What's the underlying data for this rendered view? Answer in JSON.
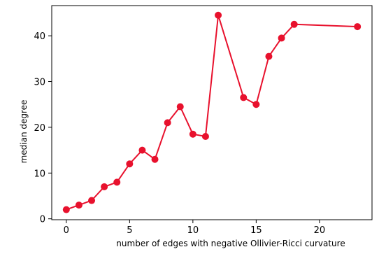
{
  "chart_data": {
    "type": "line",
    "title": "",
    "xlabel": "number of edges with negative Ollivier-Ricci curvature",
    "ylabel": "median degree",
    "xlim": [
      -1.15,
      24.15
    ],
    "ylim": [
      -0.2,
      46.6
    ],
    "xticks": [
      0,
      5,
      10,
      15,
      20
    ],
    "yticks": [
      0,
      10,
      20,
      30,
      40
    ],
    "grid": false,
    "line_color": "#e8112d",
    "series": [
      {
        "x": [
          0,
          1,
          2,
          3,
          4,
          5,
          6,
          7,
          8,
          9,
          10,
          11,
          12,
          14,
          15,
          16,
          17,
          18,
          23
        ],
        "y": [
          2,
          3,
          4,
          7,
          8,
          12,
          15,
          13,
          21,
          24.5,
          18.5,
          18,
          44.5,
          26.5,
          25,
          35.5,
          39.5,
          42.5,
          42
        ]
      }
    ]
  }
}
